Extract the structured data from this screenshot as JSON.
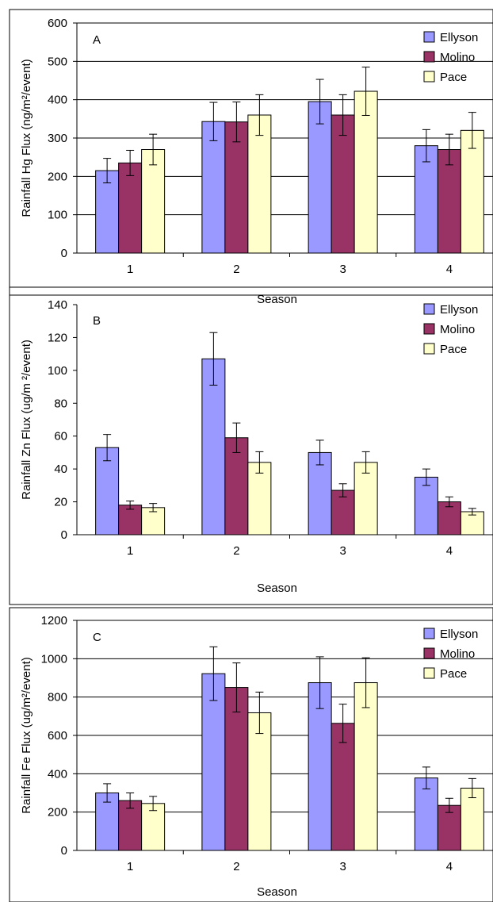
{
  "colors": {
    "Ellyson": "#9999ff",
    "Molino": "#993366",
    "Pace": "#ffffcc"
  },
  "chart_data": [
    {
      "type": "bar",
      "panel_label": "A",
      "xlabel": "Season",
      "ylabel": "Rainfall Hg Flux (ng/m²/event)",
      "categories": [
        "1",
        "2",
        "3",
        "4"
      ],
      "ylim": [
        0,
        600
      ],
      "yticks": [
        "0",
        "100",
        "200",
        "300",
        "400",
        "500",
        "600"
      ],
      "grid": true,
      "legend": "top-right",
      "series": [
        {
          "name": "Ellyson",
          "values": [
            215,
            343,
            395,
            280
          ],
          "errors": [
            32,
            50,
            58,
            42
          ]
        },
        {
          "name": "Molino",
          "values": [
            235,
            342,
            360,
            270
          ],
          "errors": [
            33,
            52,
            53,
            40
          ]
        },
        {
          "name": "Pace",
          "values": [
            270,
            360,
            422,
            320
          ],
          "errors": [
            40,
            53,
            63,
            47
          ]
        }
      ]
    },
    {
      "type": "bar",
      "panel_label": "B",
      "xlabel": "Season",
      "ylabel": "Rainfall Zn Flux (ug/m ²/event)",
      "categories": [
        "1",
        "2",
        "3",
        "4"
      ],
      "ylim": [
        0,
        140
      ],
      "yticks": [
        "0",
        "20",
        "40",
        "60",
        "80",
        "100",
        "120",
        "140"
      ],
      "grid": false,
      "legend": "top-right",
      "series": [
        {
          "name": "Ellyson",
          "values": [
            53,
            107,
            50,
            35
          ],
          "errors": [
            8,
            16,
            7.5,
            5
          ]
        },
        {
          "name": "Molino",
          "values": [
            18,
            59,
            27,
            20
          ],
          "errors": [
            2.5,
            9,
            4,
            3
          ]
        },
        {
          "name": "Pace",
          "values": [
            16.5,
            44,
            44,
            14
          ],
          "errors": [
            2.5,
            6.5,
            6.5,
            2
          ]
        }
      ]
    },
    {
      "type": "bar",
      "panel_label": "C",
      "xlabel": "Season",
      "ylabel": "Rainfall Fe Flux (ug/m²/event)",
      "categories": [
        "1",
        "2",
        "3",
        "4"
      ],
      "ylim": [
        0,
        1200
      ],
      "yticks": [
        "0",
        "200",
        "400",
        "600",
        "800",
        "1000",
        "1200"
      ],
      "grid": true,
      "legend": "top-right",
      "series": [
        {
          "name": "Ellyson",
          "values": [
            300,
            922,
            875,
            378
          ],
          "errors": [
            48,
            140,
            135,
            57
          ]
        },
        {
          "name": "Molino",
          "values": [
            260,
            850,
            663,
            235
          ],
          "errors": [
            40,
            128,
            100,
            37
          ]
        },
        {
          "name": "Pace",
          "values": [
            245,
            718,
            875,
            325
          ],
          "errors": [
            37,
            108,
            130,
            50
          ]
        }
      ]
    }
  ]
}
